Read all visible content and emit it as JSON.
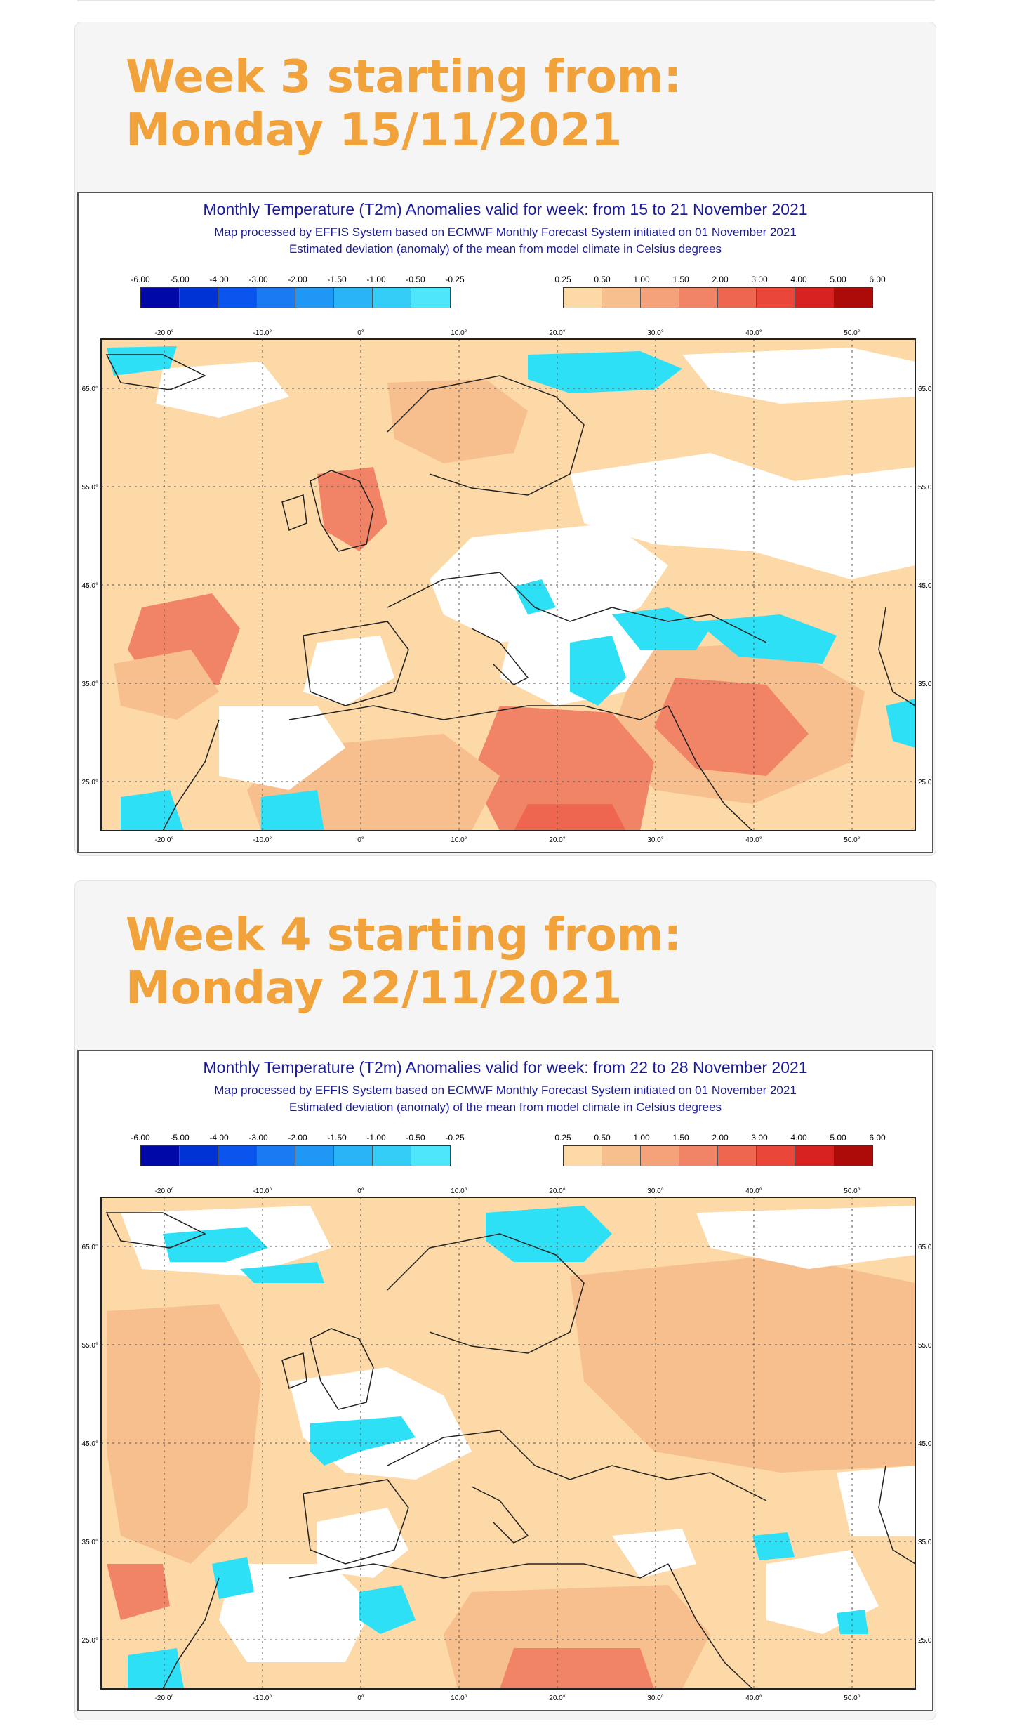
{
  "sections": [
    {
      "title": "Week 3 starting from: Monday 15/11/2021",
      "map_title": "Monthly Temperature (T2m) Anomalies valid for week: from 15 to 21 November 2021",
      "subtitle1": "Map processed by EFFIS System based on ECMWF Monthly Forecast System initiated on 01 November 2021",
      "subtitle2": "Estimated deviation (anomaly) of the mean from model climate in Celsius degrees"
    },
    {
      "title": "Week 4 starting from: Monday 22/11/2021",
      "map_title": "Monthly Temperature (T2m) Anomalies valid for week: from 22 to 28 November 2021",
      "subtitle1": "Map processed by EFFIS System based on ECMWF Monthly Forecast System initiated on 01 November 2021",
      "subtitle2": "Estimated deviation (anomaly) of the mean from model climate in Celsius degrees"
    }
  ],
  "legend": {
    "negative_labels": [
      "-6.00",
      "-5.00",
      "-4.00",
      "-3.00",
      "-2.00",
      "-1.50",
      "-1.00",
      "-0.50",
      "-0.25"
    ],
    "negative_colors": [
      "#0008a8",
      "#0033d6",
      "#0a55ee",
      "#1a7af2",
      "#1f98f5",
      "#28b4f7",
      "#34cdf8",
      "#4ee6fb"
    ],
    "positive_labels": [
      "0.25",
      "0.50",
      "1.00",
      "1.50",
      "2.00",
      "3.00",
      "4.00",
      "5.00",
      "6.00"
    ],
    "positive_colors": [
      "#fcd9a6",
      "#f8bf8e",
      "#f5a27a",
      "#f18466",
      "#ee6650",
      "#ea463a",
      "#d82222",
      "#ad0a0a"
    ]
  },
  "axes": {
    "lon_labels": [
      "-20.0°",
      "-10.0°",
      "0°",
      "10.0°",
      "20.0°",
      "30.0°",
      "40.0°",
      "50.0°"
    ],
    "lat_labels": [
      "65.0°",
      "55.0°",
      "45.0°",
      "35.0°",
      "25.0°"
    ]
  },
  "colors": {
    "title": "#f2a23a",
    "map_text": "#1a1a9a",
    "cold": "#2ee0f5",
    "warm_light": "#fcd9a6",
    "warm_mid": "#f8bf8e",
    "warm_strong": "#f18466"
  }
}
